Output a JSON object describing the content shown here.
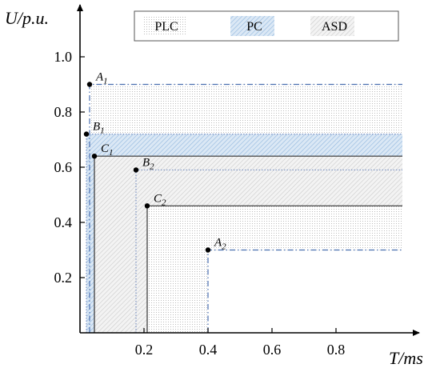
{
  "chart_data": {
    "type": "area",
    "xlabel": "T/ms",
    "ylabel": "U/p.u.",
    "xlim": [
      0,
      1.0
    ],
    "ylim": [
      0,
      1.1
    ],
    "x_ticks": [
      {
        "v": 0.2,
        "label": "0.2"
      },
      {
        "v": 0.4,
        "label": "0.4"
      },
      {
        "v": 0.6,
        "label": "0.6"
      },
      {
        "v": 0.8,
        "label": "0.8"
      }
    ],
    "y_ticks": [
      {
        "v": 0.2,
        "label": "0.2"
      },
      {
        "v": 0.4,
        "label": "0.4"
      },
      {
        "v": 0.6,
        "label": "0.6"
      },
      {
        "v": 0.8,
        "label": "0.8"
      },
      {
        "v": 1.0,
        "label": "1.0"
      }
    ],
    "legend": {
      "placement": "top",
      "entries": [
        {
          "name": "PLC",
          "color": "#bdbdbd",
          "pattern": "dots"
        },
        {
          "name": "PC",
          "color": "#5a9bd5",
          "pattern": "hatch"
        },
        {
          "name": "ASD",
          "color": "#9e9e9e",
          "pattern": "hatch"
        }
      ]
    },
    "series": [
      {
        "name": "PLC",
        "pattern": "dots",
        "corner_point": "A1",
        "lower_point": "A2"
      },
      {
        "name": "PC",
        "pattern": "hatch",
        "color": "#5a9bd5",
        "corner_point": "B1",
        "lower_point": "B2"
      },
      {
        "name": "ASD",
        "pattern": "hatch",
        "color": "#9e9e9e",
        "corner_point": "C1",
        "lower_point": "C2"
      }
    ],
    "points": [
      {
        "id": "A1",
        "letter": "A",
        "sub": "1",
        "x": 0.03,
        "y": 0.9,
        "line_color": "#4a6fb0",
        "line_style": "dashdot"
      },
      {
        "id": "B1",
        "letter": "B",
        "sub": "1",
        "x": 0.02,
        "y": 0.72,
        "line_color": "#7a92c4",
        "line_style": "dotted"
      },
      {
        "id": "C1",
        "letter": "C",
        "sub": "1",
        "x": 0.045,
        "y": 0.64,
        "line_color": "#333333",
        "line_style": "solid"
      },
      {
        "id": "B2",
        "letter": "B",
        "sub": "2",
        "x": 0.175,
        "y": 0.59,
        "line_color": "#7a92c4",
        "line_style": "dotted"
      },
      {
        "id": "C2",
        "letter": "C",
        "sub": "2",
        "x": 0.21,
        "y": 0.46,
        "line_color": "#333333",
        "line_style": "solid"
      },
      {
        "id": "A2",
        "letter": "A",
        "sub": "2",
        "x": 0.4,
        "y": 0.3,
        "line_color": "#4a6fb0",
        "line_style": "dashdot"
      }
    ]
  }
}
